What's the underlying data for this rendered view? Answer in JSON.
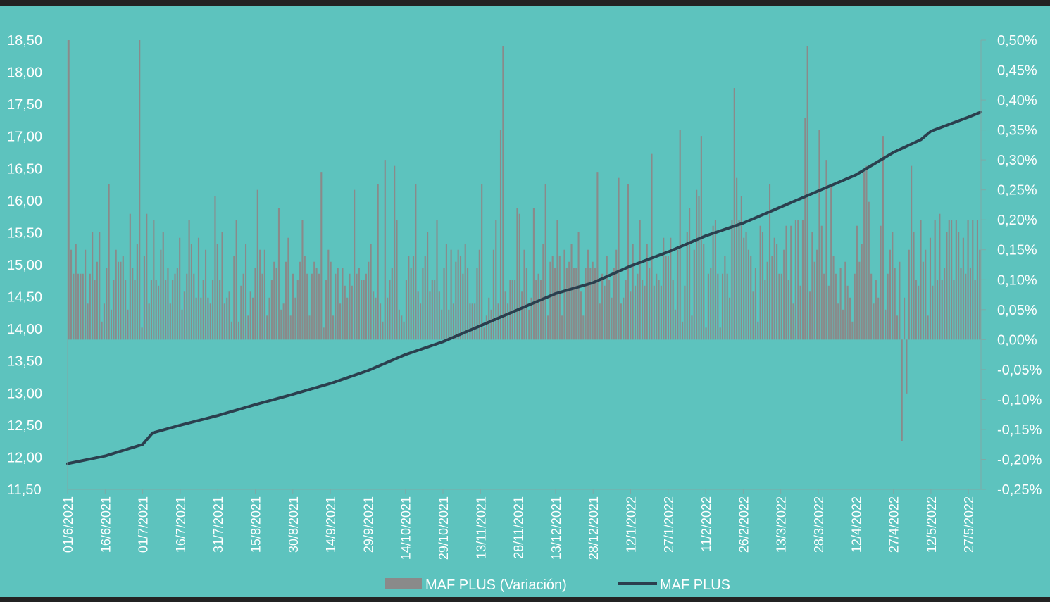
{
  "colors": {
    "plot_background": "#5DC3BE",
    "outer_background": "#232323",
    "bar_color": "#8A8A8A",
    "line_color": "#2B3F4E",
    "text_color": "#FFFFFF"
  },
  "chart_data": {
    "type": "bar+line",
    "title": "",
    "xlabel": "",
    "ylabel": "",
    "grid": false,
    "legend_position": "bottom",
    "left_axis": {
      "min": 11.5,
      "max": 18.5,
      "ticks": [
        "18,50",
        "18,00",
        "17,50",
        "17,00",
        "16,50",
        "16,00",
        "15,50",
        "15,00",
        "14,50",
        "14,00",
        "13,50",
        "13,00",
        "12,50",
        "12,00",
        "11,50"
      ]
    },
    "right_axis": {
      "min": -0.25,
      "max": 0.5,
      "unit": "%",
      "ticks": [
        "0,50%",
        "0,45%",
        "0,40%",
        "0,35%",
        "0,30%",
        "0,25%",
        "0,20%",
        "0,15%",
        "0,10%",
        "0,05%",
        "0,00%",
        "-0,05%",
        "-0,10%",
        "-0,15%",
        "-0,20%",
        "-0,25%"
      ]
    },
    "x_range": [
      "2021-06-01",
      "2022-06-01"
    ],
    "x_ticks": [
      "01/6/2021",
      "16/6/2021",
      "01/7/2021",
      "16/7/2021",
      "31/7/2021",
      "15/8/2021",
      "30/8/2021",
      "14/9/2021",
      "29/9/2021",
      "14/10/2021",
      "29/10/2021",
      "13/11/2021",
      "28/11/2021",
      "13/12/2021",
      "28/12/2021",
      "12/1/2022",
      "27/1/2022",
      "11/2/2022",
      "26/2/2022",
      "13/3/2022",
      "28/3/2022",
      "12/4/2022",
      "27/4/2022",
      "12/5/2022",
      "27/5/2022"
    ],
    "series": [
      {
        "name": "MAF PLUS (Variación)",
        "kind": "bar",
        "axis": "right",
        "start_date": "2021-06-01",
        "values": [
          0.5,
          0.15,
          0.11,
          0.16,
          0.11,
          0.11,
          0.11,
          0.15,
          0.06,
          0.11,
          0.18,
          0.1,
          0.13,
          0.18,
          0.03,
          0.06,
          0.12,
          0.26,
          0.05,
          0.1,
          0.15,
          0.13,
          0.13,
          0.14,
          0.1,
          0.05,
          0.21,
          0.12,
          0.1,
          0.16,
          0.5,
          0.02,
          0.14,
          0.21,
          0.06,
          0.1,
          0.2,
          0.1,
          0.09,
          0.15,
          0.18,
          0.1,
          0.12,
          0.06,
          0.1,
          0.11,
          0.12,
          0.17,
          0.05,
          0.08,
          0.11,
          0.2,
          0.16,
          0.11,
          0.07,
          0.17,
          0.07,
          0.1,
          0.15,
          0.07,
          0.06,
          0.1,
          0.24,
          0.16,
          0.1,
          0.18,
          0.06,
          0.07,
          0.08,
          0.03,
          0.14,
          0.2,
          0.03,
          0.09,
          0.11,
          0.16,
          0.04,
          0.08,
          0.07,
          0.12,
          0.25,
          0.15,
          0.11,
          0.15,
          0.04,
          0.07,
          0.1,
          0.13,
          0.12,
          0.22,
          0.05,
          0.06,
          0.13,
          0.17,
          0.04,
          0.11,
          0.07,
          0.1,
          0.13,
          0.2,
          0.14,
          0.11,
          0.04,
          0.11,
          0.13,
          0.12,
          0.11,
          0.28,
          0.02,
          0.1,
          0.15,
          0.13,
          0.04,
          0.11,
          0.12,
          0.06,
          0.12,
          0.09,
          0.07,
          0.11,
          0.09,
          0.25,
          0.11,
          0.12,
          0.1,
          0.1,
          0.11,
          0.13,
          0.16,
          0.08,
          0.07,
          0.26,
          0.06,
          0.03,
          0.3,
          0.07,
          0.1,
          0.12,
          0.29,
          0.2,
          0.05,
          0.04,
          0.03,
          0.1,
          0.14,
          0.12,
          0.14,
          0.26,
          0.08,
          0.06,
          0.12,
          0.14,
          0.18,
          0.08,
          0.1,
          0.1,
          0.2,
          0.08,
          0.05,
          0.12,
          0.16,
          0.05,
          0.15,
          0.06,
          0.13,
          0.15,
          0.14,
          0.11,
          0.16,
          0.12,
          0.06,
          0.06,
          0.06,
          0.12,
          0.15,
          0.26,
          0.02,
          0.04,
          0.07,
          0.05,
          0.15,
          0.2,
          0.06,
          0.35,
          0.49,
          0.08,
          0.06,
          0.1,
          0.1,
          0.1,
          0.22,
          0.21,
          0.08,
          0.15,
          0.12,
          0.05,
          0.07,
          0.22,
          0.1,
          0.11,
          0.1,
          0.16,
          0.26,
          0.04,
          0.13,
          0.14,
          0.12,
          0.2,
          0.14,
          0.04,
          0.15,
          0.12,
          0.13,
          0.16,
          0.12,
          0.12,
          0.18,
          0.08,
          0.04,
          0.12,
          0.15,
          0.12,
          0.13,
          0.12,
          0.28,
          0.06,
          0.11,
          0.09,
          0.14,
          0.1,
          0.07,
          0.12,
          0.15,
          0.27,
          0.06,
          0.07,
          0.1,
          0.26,
          0.08,
          0.16,
          0.09,
          0.11,
          0.2,
          0.1,
          0.09,
          0.16,
          0.12,
          0.31,
          0.09,
          0.11,
          0.1,
          0.09,
          0.17,
          0.14,
          0.14,
          0.17,
          0.1,
          0.05,
          0.15,
          0.35,
          0.03,
          0.09,
          0.18,
          0.22,
          0.04,
          0.15,
          0.25,
          0.24,
          0.34,
          0.16,
          0.02,
          0.11,
          0.12,
          0.19,
          0.2,
          0.11,
          0.02,
          0.11,
          0.14,
          0.11,
          0.07,
          0.2,
          0.42,
          0.27,
          0.2,
          0.24,
          0.17,
          0.18,
          0.15,
          0.14,
          0.08,
          0.12,
          0.03,
          0.19,
          0.18,
          0.1,
          0.13,
          0.26,
          0.14,
          0.17,
          0.16,
          0.11,
          0.11,
          0.15,
          0.19,
          0.1,
          0.19,
          0.06,
          0.2,
          0.2,
          0.09,
          0.2,
          0.37,
          0.49,
          0.08,
          0.18,
          0.13,
          0.15,
          0.35,
          0.19,
          0.11,
          0.3,
          0.09,
          0.26,
          0.14,
          0.11,
          0.06,
          0.12,
          0.05,
          0.13,
          0.09,
          0.07,
          0.03,
          0.11,
          0.19,
          0.13,
          0.16,
          0.28,
          0.29,
          0.23,
          0.11,
          0.06,
          0.1,
          0.07,
          0.19,
          0.34,
          0.05,
          0.11,
          0.15,
          0.18,
          0.12,
          0.04,
          0.13,
          -0.17,
          0.07,
          -0.09,
          0.15,
          0.29,
          0.18,
          0.1,
          0.09,
          0.2,
          0.13,
          0.15,
          0.04,
          0.17,
          0.09,
          0.2,
          0.1,
          0.21,
          0.1,
          0.12,
          0.18,
          0.2,
          0.2,
          0.1,
          0.2,
          0.18,
          0.12,
          0.17,
          0.11,
          0.2,
          0.12,
          0.2,
          0.1,
          0.2,
          0.15
        ]
      },
      {
        "name": "MAF PLUS",
        "kind": "line",
        "axis": "left",
        "points": [
          [
            "2021-06-01",
            11.9
          ],
          [
            "2021-06-16",
            12.02
          ],
          [
            "2021-07-01",
            12.2
          ],
          [
            "2021-07-05",
            12.38
          ],
          [
            "2021-07-16",
            12.5
          ],
          [
            "2021-07-31",
            12.65
          ],
          [
            "2021-08-15",
            12.82
          ],
          [
            "2021-08-30",
            12.98
          ],
          [
            "2021-09-14",
            13.15
          ],
          [
            "2021-09-29",
            13.35
          ],
          [
            "2021-10-14",
            13.6
          ],
          [
            "2021-10-29",
            13.8
          ],
          [
            "2021-11-13",
            14.05
          ],
          [
            "2021-11-28",
            14.3
          ],
          [
            "2021-12-13",
            14.55
          ],
          [
            "2021-12-28",
            14.72
          ],
          [
            "2022-01-12",
            14.98
          ],
          [
            "2022-01-27",
            15.2
          ],
          [
            "2022-02-11",
            15.45
          ],
          [
            "2022-02-26",
            15.65
          ],
          [
            "2022-03-13",
            15.9
          ],
          [
            "2022-03-28",
            16.15
          ],
          [
            "2022-04-12",
            16.4
          ],
          [
            "2022-04-27",
            16.75
          ],
          [
            "2022-05-08",
            16.95
          ],
          [
            "2022-05-12",
            17.08
          ],
          [
            "2022-05-27",
            17.3
          ],
          [
            "2022-06-01",
            17.38
          ]
        ]
      }
    ]
  },
  "legend": {
    "items": [
      {
        "label": "MAF PLUS (Variación)",
        "kind": "bar"
      },
      {
        "label": "MAF PLUS",
        "kind": "line"
      }
    ]
  }
}
